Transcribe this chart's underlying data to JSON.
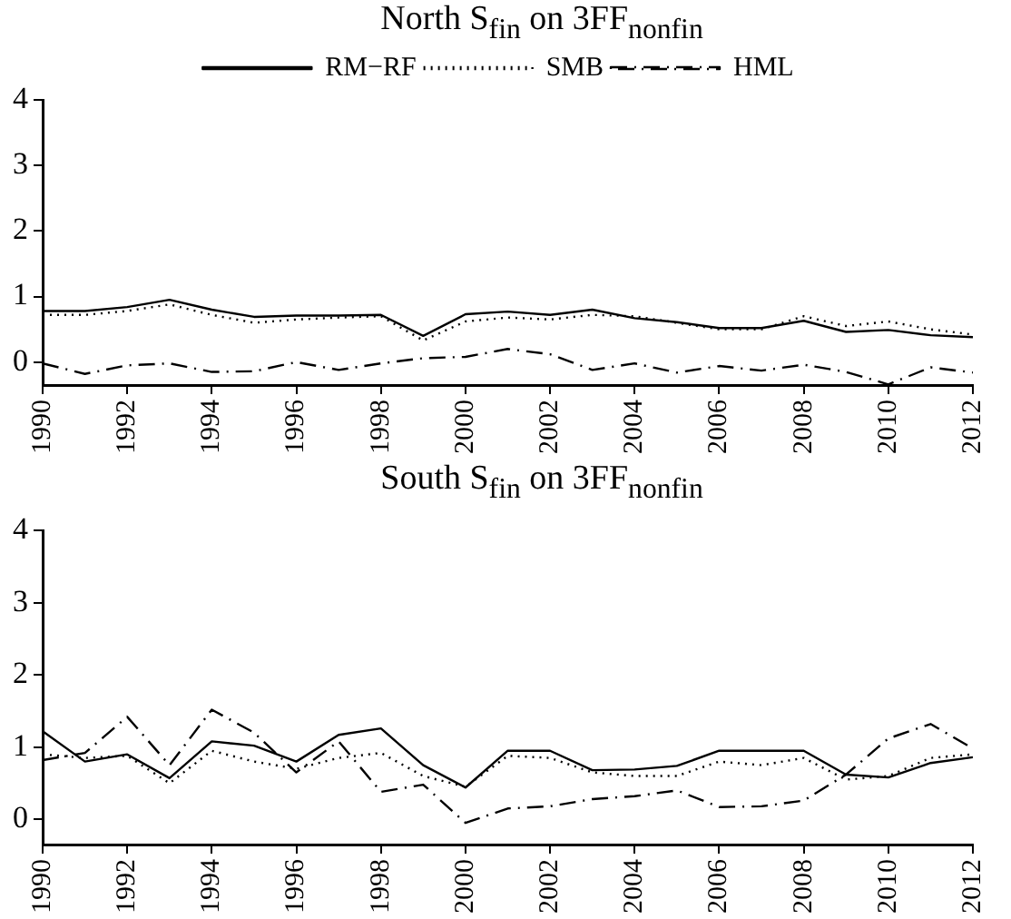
{
  "chart_data": [
    {
      "type": "line",
      "title": "North S$_{fin}$ on 3FF$_{nonfin}$",
      "x": [
        1990,
        1991,
        1992,
        1993,
        1994,
        1995,
        1996,
        1997,
        1998,
        1999,
        2000,
        2001,
        2002,
        2003,
        2004,
        2005,
        2006,
        2007,
        2008,
        2009,
        2010,
        2011,
        2012
      ],
      "xlim": [
        1990,
        2012
      ],
      "xticks": [
        1990,
        1992,
        1994,
        1996,
        1998,
        2000,
        2002,
        2004,
        2006,
        2008,
        2010,
        2012
      ],
      "ylim": [
        -0.35,
        4
      ],
      "yticks": [
        0,
        1,
        2,
        3,
        4
      ],
      "grid": false,
      "legend": "top",
      "marker": "none",
      "series": [
        {
          "name": "RM−RF",
          "color": "#000000",
          "line_style": "solid",
          "values": [
            0.78,
            0.78,
            0.84,
            0.95,
            0.8,
            0.69,
            0.71,
            0.71,
            0.72,
            0.4,
            0.73,
            0.77,
            0.72,
            0.8,
            0.67,
            0.61,
            0.52,
            0.52,
            0.63,
            0.46,
            0.49,
            0.41,
            0.38
          ]
        },
        {
          "name": "SMB",
          "color": "#000000",
          "line_style": "dotted",
          "values": [
            0.72,
            0.72,
            0.78,
            0.88,
            0.72,
            0.6,
            0.65,
            0.68,
            0.7,
            0.33,
            0.62,
            0.68,
            0.65,
            0.72,
            0.7,
            0.6,
            0.5,
            0.5,
            0.7,
            0.55,
            0.62,
            0.5,
            0.42
          ]
        },
        {
          "name": "HML",
          "color": "#000000",
          "line_style": "dashdot",
          "values": [
            -0.02,
            -0.18,
            -0.05,
            -0.02,
            -0.15,
            -0.14,
            0.0,
            -0.12,
            -0.02,
            0.06,
            0.08,
            0.2,
            0.12,
            -0.12,
            -0.02,
            -0.16,
            -0.06,
            -0.13,
            -0.04,
            -0.15,
            -0.34,
            -0.08,
            -0.16
          ]
        }
      ]
    },
    {
      "type": "line",
      "title": "South S$_{fin}$ on 3FF$_{nonfin}$",
      "x": [
        1990,
        1991,
        1992,
        1993,
        1994,
        1995,
        1996,
        1997,
        1998,
        1999,
        2000,
        2001,
        2002,
        2003,
        2004,
        2005,
        2006,
        2007,
        2008,
        2009,
        2010,
        2011,
        2012
      ],
      "xlim": [
        1990,
        2012
      ],
      "xticks": [
        1990,
        1992,
        1994,
        1996,
        1998,
        2000,
        2002,
        2004,
        2006,
        2008,
        2010,
        2012
      ],
      "ylim": [
        -0.35,
        4
      ],
      "yticks": [
        0,
        1,
        2,
        3,
        4
      ],
      "grid": false,
      "legend": false,
      "marker": "none",
      "series": [
        {
          "color": "#000000",
          "line_style": "solid",
          "values": [
            1.22,
            0.8,
            0.9,
            0.57,
            1.08,
            1.02,
            0.8,
            1.17,
            1.26,
            0.75,
            0.44,
            0.95,
            0.95,
            0.68,
            0.69,
            0.74,
            0.95,
            0.95,
            0.95,
            0.62,
            0.58,
            0.78,
            0.86
          ]
        },
        {
          "color": "#000000",
          "line_style": "dotted",
          "values": [
            0.9,
            0.85,
            0.88,
            0.5,
            0.95,
            0.8,
            0.7,
            0.85,
            0.92,
            0.6,
            0.45,
            0.88,
            0.85,
            0.65,
            0.6,
            0.6,
            0.8,
            0.75,
            0.85,
            0.55,
            0.6,
            0.85,
            0.9
          ]
        },
        {
          "color": "#000000",
          "line_style": "dashdot",
          "values": [
            0.82,
            0.92,
            1.42,
            0.75,
            1.52,
            1.2,
            0.65,
            1.08,
            0.38,
            0.48,
            -0.05,
            0.15,
            0.18,
            0.28,
            0.32,
            0.4,
            0.17,
            0.18,
            0.26,
            0.62,
            1.12,
            1.32,
            0.98
          ]
        }
      ]
    }
  ]
}
